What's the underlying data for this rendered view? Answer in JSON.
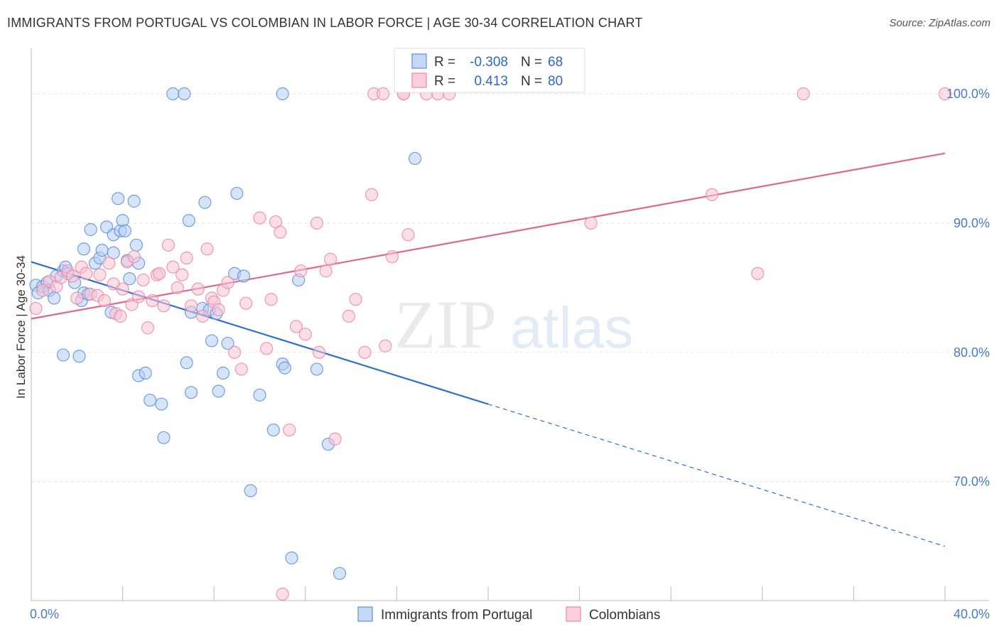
{
  "title": "IMMIGRANTS FROM PORTUGAL VS COLOMBIAN IN LABOR FORCE | AGE 30-34 CORRELATION CHART",
  "source": "Source: ZipAtlas.com",
  "watermark": {
    "zip": "ZIP",
    "atlas": "atlas"
  },
  "legend_box": {
    "rows": [
      {
        "r_label": "R =",
        "r_value": "-0.308",
        "n_label": "N =",
        "n_value": "68"
      },
      {
        "r_label": "R =",
        "r_value": "0.413",
        "n_label": "N =",
        "n_value": "80"
      }
    ]
  },
  "chart_data": {
    "type": "scatter",
    "title": "IMMIGRANTS FROM PORTUGAL VS COLOMBIAN IN LABOR FORCE | AGE 30-34 CORRELATION CHART",
    "xlabel": "",
    "ylabel": "In Labor Force | Age 30-34",
    "xlim": [
      0,
      40
    ],
    "ylim": [
      60.8,
      103.3
    ],
    "x_tick_labels": [
      {
        "value": 0,
        "label": "0.0%"
      },
      {
        "value": 40,
        "label": "40.0%"
      }
    ],
    "y_tick_labels": [
      {
        "value": 70,
        "label": "70.0%"
      },
      {
        "value": 80,
        "label": "80.0%"
      },
      {
        "value": 90,
        "label": "90.0%"
      },
      {
        "value": 100,
        "label": "100.0%"
      }
    ],
    "grid": {
      "horizontal": true,
      "vertical": false,
      "style": "dashed"
    },
    "legend_position": "bottom-center",
    "colors": {
      "portugal": "#5b8fe0",
      "colombians": "#ef86a6",
      "portugal_line": "#2f6fce",
      "colombians_line": "#e0668f"
    },
    "series": [
      {
        "name": "Immigrants from Portugal",
        "key": "portugal",
        "r": -0.308,
        "n": 68,
        "trend": {
          "x0": 0.0,
          "y0": 87.0,
          "x1": 20.0,
          "y1": 76.0,
          "dashed_to_x": 40.0,
          "dashed_to_y": 65.0
        },
        "points": [
          [
            0.2,
            85.2
          ],
          [
            0.3,
            84.6
          ],
          [
            0.5,
            85.1
          ],
          [
            0.7,
            85.4
          ],
          [
            0.8,
            84.8
          ],
          [
            1.0,
            84.2
          ],
          [
            1.1,
            85.9
          ],
          [
            1.4,
            86.3
          ],
          [
            1.5,
            86.6
          ],
          [
            1.6,
            86.1
          ],
          [
            1.9,
            85.4
          ],
          [
            2.3,
            88.0
          ],
          [
            2.6,
            89.5
          ],
          [
            1.4,
            79.8
          ],
          [
            2.1,
            79.7
          ],
          [
            2.2,
            84.0
          ],
          [
            2.3,
            84.6
          ],
          [
            2.5,
            84.5
          ],
          [
            2.8,
            86.9
          ],
          [
            3.0,
            87.3
          ],
          [
            3.1,
            87.9
          ],
          [
            3.3,
            89.7
          ],
          [
            3.5,
            83.1
          ],
          [
            3.6,
            87.7
          ],
          [
            3.8,
            91.9
          ],
          [
            3.6,
            89.1
          ],
          [
            3.9,
            89.4
          ],
          [
            4.2,
            87.1
          ],
          [
            4.0,
            90.2
          ],
          [
            4.1,
            89.4
          ],
          [
            4.3,
            85.7
          ],
          [
            4.5,
            91.7
          ],
          [
            4.6,
            88.3
          ],
          [
            4.7,
            86.9
          ],
          [
            4.7,
            78.2
          ],
          [
            5.0,
            78.4
          ],
          [
            5.2,
            76.3
          ],
          [
            5.7,
            76.0
          ],
          [
            5.8,
            73.4
          ],
          [
            6.2,
            100.0
          ],
          [
            6.7,
            100.0
          ],
          [
            6.8,
            79.2
          ],
          [
            6.9,
            90.2
          ],
          [
            7.0,
            76.9
          ],
          [
            7.0,
            83.1
          ],
          [
            7.5,
            83.4
          ],
          [
            7.6,
            91.6
          ],
          [
            7.8,
            83.3
          ],
          [
            7.9,
            80.9
          ],
          [
            8.1,
            83.0
          ],
          [
            8.2,
            77.0
          ],
          [
            8.4,
            78.4
          ],
          [
            8.6,
            80.7
          ],
          [
            8.9,
            86.1
          ],
          [
            9.0,
            92.3
          ],
          [
            9.3,
            85.9
          ],
          [
            9.6,
            69.3
          ],
          [
            10.0,
            76.7
          ],
          [
            10.6,
            74.0
          ],
          [
            11.0,
            100.0
          ],
          [
            11.0,
            79.1
          ],
          [
            11.1,
            78.8
          ],
          [
            11.4,
            64.1
          ],
          [
            11.7,
            85.6
          ],
          [
            12.5,
            78.7
          ],
          [
            13.0,
            72.9
          ],
          [
            13.5,
            62.9
          ],
          [
            16.8,
            95.0
          ]
        ]
      },
      {
        "name": "Colombians",
        "key": "colombians",
        "r": 0.413,
        "n": 80,
        "trend": {
          "x0": 0.0,
          "y0": 82.6,
          "x1": 40.0,
          "y1": 95.4
        },
        "points": [
          [
            0.2,
            83.4
          ],
          [
            0.5,
            84.8
          ],
          [
            0.8,
            85.5
          ],
          [
            1.1,
            85.1
          ],
          [
            1.3,
            85.8
          ],
          [
            1.6,
            86.3
          ],
          [
            1.8,
            85.9
          ],
          [
            2.0,
            84.2
          ],
          [
            2.2,
            86.6
          ],
          [
            2.4,
            86.1
          ],
          [
            2.6,
            84.5
          ],
          [
            2.9,
            84.4
          ],
          [
            3.0,
            86.0
          ],
          [
            3.2,
            84.0
          ],
          [
            3.4,
            86.9
          ],
          [
            3.6,
            85.3
          ],
          [
            3.7,
            83.0
          ],
          [
            3.9,
            82.8
          ],
          [
            4.0,
            84.9
          ],
          [
            4.2,
            87.0
          ],
          [
            4.4,
            83.7
          ],
          [
            4.5,
            87.4
          ],
          [
            4.7,
            84.3
          ],
          [
            4.9,
            85.6
          ],
          [
            5.1,
            81.9
          ],
          [
            5.3,
            84.0
          ],
          [
            5.5,
            86.0
          ],
          [
            5.6,
            86.1
          ],
          [
            5.8,
            83.6
          ],
          [
            6.0,
            88.3
          ],
          [
            6.2,
            86.6
          ],
          [
            6.4,
            85.0
          ],
          [
            6.6,
            86.0
          ],
          [
            6.8,
            87.3
          ],
          [
            7.0,
            83.6
          ],
          [
            7.3,
            84.9
          ],
          [
            7.5,
            82.8
          ],
          [
            7.7,
            88.0
          ],
          [
            7.9,
            84.2
          ],
          [
            8.0,
            83.9
          ],
          [
            8.2,
            83.3
          ],
          [
            8.4,
            84.8
          ],
          [
            8.6,
            85.4
          ],
          [
            8.9,
            80.0
          ],
          [
            9.2,
            78.7
          ],
          [
            9.4,
            83.8
          ],
          [
            10.0,
            90.4
          ],
          [
            10.3,
            80.3
          ],
          [
            10.5,
            84.1
          ],
          [
            10.7,
            90.1
          ],
          [
            10.9,
            89.3
          ],
          [
            11.3,
            74.0
          ],
          [
            11.6,
            82.0
          ],
          [
            11.8,
            86.3
          ],
          [
            12.0,
            81.4
          ],
          [
            12.5,
            90.0
          ],
          [
            12.6,
            80.0
          ],
          [
            12.9,
            86.3
          ],
          [
            13.1,
            87.2
          ],
          [
            13.3,
            73.3
          ],
          [
            13.9,
            82.8
          ],
          [
            14.2,
            84.1
          ],
          [
            14.6,
            80.0
          ],
          [
            14.9,
            92.2
          ],
          [
            15.0,
            100.0
          ],
          [
            15.4,
            100.0
          ],
          [
            15.5,
            80.5
          ],
          [
            15.8,
            87.4
          ],
          [
            16.3,
            100.0
          ],
          [
            16.3,
            100.0
          ],
          [
            16.5,
            89.1
          ],
          [
            17.3,
            100.0
          ],
          [
            17.8,
            100.0
          ],
          [
            18.3,
            100.0
          ],
          [
            24.5,
            90.0
          ],
          [
            29.8,
            92.2
          ],
          [
            31.8,
            86.1
          ],
          [
            33.8,
            100.0
          ],
          [
            40.0,
            100.0
          ],
          [
            11.0,
            61.3
          ]
        ]
      }
    ]
  },
  "bottom_legend": {
    "items": [
      {
        "label": "Immigrants from Portugal"
      },
      {
        "label": "Colombians"
      }
    ]
  }
}
